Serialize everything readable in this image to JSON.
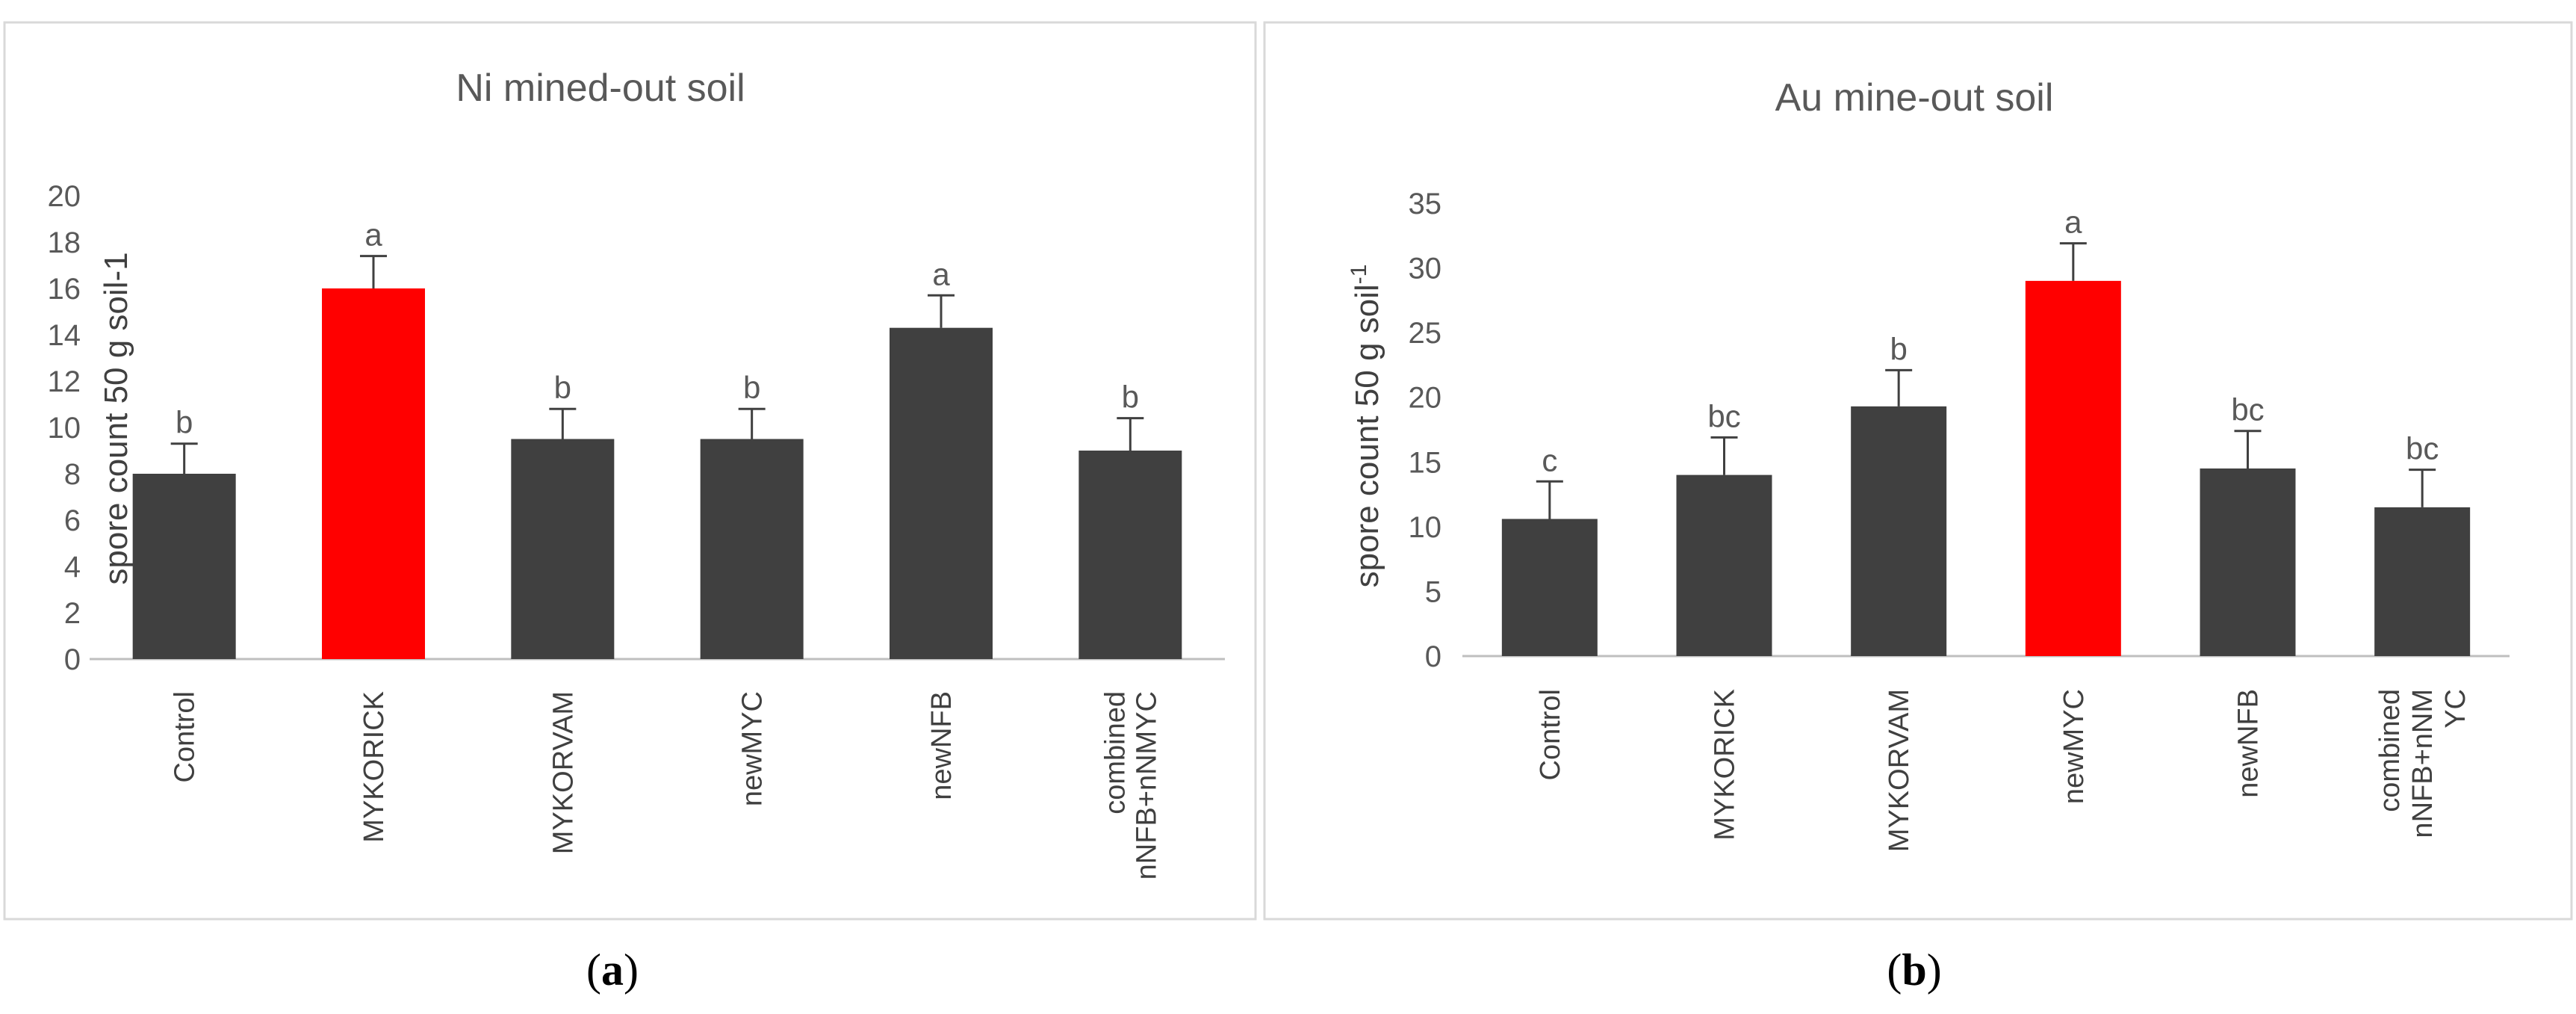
{
  "colors": {
    "bar": "#404040",
    "highlight": "#ff0000",
    "axis": "#bfbfbf",
    "text": "#595959"
  },
  "chart_data": [
    {
      "type": "bar",
      "title": "Ni mined-out soil",
      "ylabel": "spore count 50 g soil-1",
      "ylabel_sup": "",
      "caption_letter": "a",
      "ylim": [
        0,
        20
      ],
      "yticks": [
        0,
        2,
        4,
        6,
        8,
        10,
        12,
        14,
        16,
        18,
        20
      ],
      "categories": [
        [
          "Control"
        ],
        [
          "MYKORICK"
        ],
        [
          "MYKORVAM"
        ],
        [
          "newMYC"
        ],
        [
          "newNFB"
        ],
        [
          "combined",
          "nNFB+nNMYC"
        ]
      ],
      "values": [
        8.0,
        16.0,
        9.5,
        9.5,
        14.3,
        9.0
      ],
      "error": [
        1.3,
        1.4,
        1.3,
        1.3,
        1.4,
        1.4
      ],
      "letters": [
        "b",
        "a",
        "b",
        "b",
        "a",
        "b"
      ],
      "highlight": [
        false,
        true,
        false,
        false,
        false,
        false
      ],
      "grid": false
    },
    {
      "type": "bar",
      "title": "Au mine-out soil",
      "ylabel": "spore count 50 g soil",
      "ylabel_sup": "-1",
      "caption_letter": "b",
      "ylim": [
        0,
        35
      ],
      "yticks": [
        0,
        5,
        10,
        15,
        20,
        25,
        30,
        35
      ],
      "categories": [
        [
          "Control"
        ],
        [
          "MYKORICK"
        ],
        [
          "MYKORVAM"
        ],
        [
          "newMYC"
        ],
        [
          "newNFB"
        ],
        [
          "combined",
          "nNFB+nNM",
          "YC"
        ]
      ],
      "values": [
        10.6,
        14.0,
        19.3,
        29.0,
        14.5,
        11.5
      ],
      "error": [
        2.9,
        2.9,
        2.8,
        2.9,
        2.9,
        2.9
      ],
      "letters": [
        "c",
        "bc",
        "b",
        "a",
        "bc",
        "bc"
      ],
      "highlight": [
        false,
        false,
        false,
        true,
        false,
        false
      ],
      "grid": false
    }
  ]
}
